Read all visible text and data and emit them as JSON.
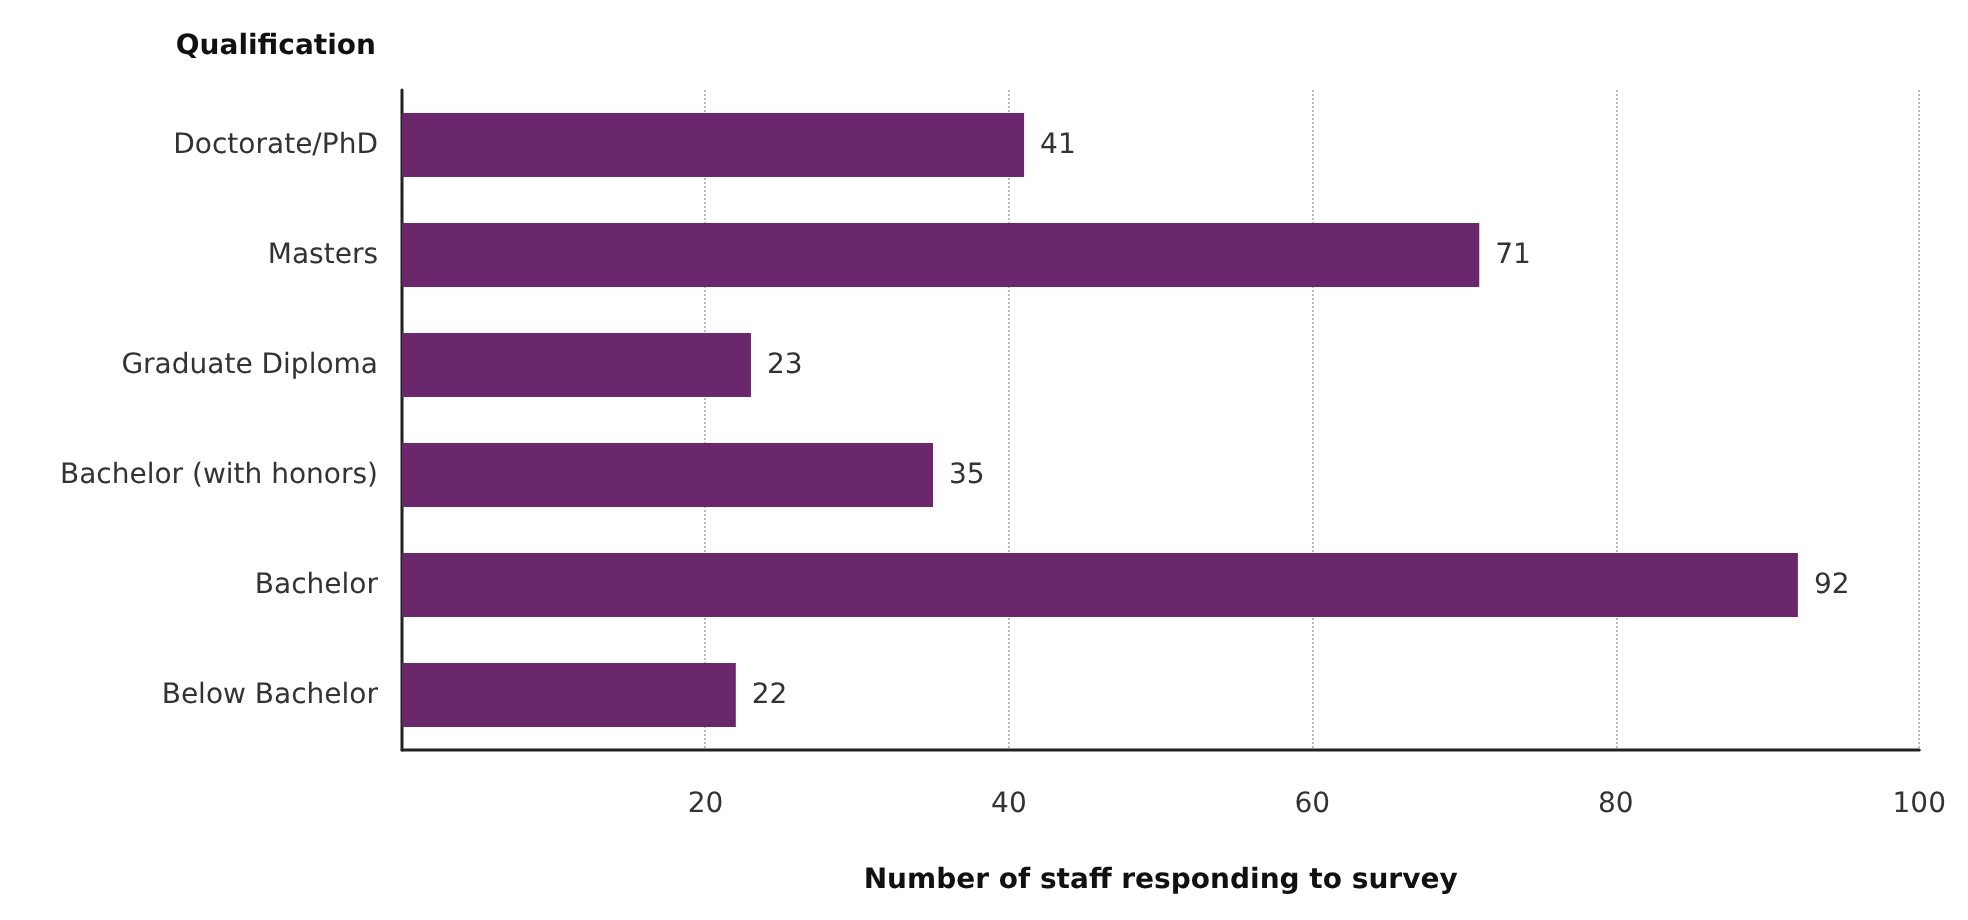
{
  "chart_data": {
    "type": "bar",
    "orientation": "horizontal",
    "ylabel": "Qualification",
    "xlabel": "Number of staff responding to survey",
    "categories": [
      "Doctorate/PhD",
      "Masters",
      "Graduate Diploma",
      "Bachelor (with honors)",
      "Bachelor",
      "Below Bachelor"
    ],
    "values": [
      41,
      71,
      23,
      35,
      92,
      22
    ],
    "color": "#6b276b",
    "data_labels": true,
    "xlim": [
      0,
      100
    ],
    "xticks": [
      20,
      40,
      60,
      80,
      100
    ],
    "grid": "x"
  }
}
